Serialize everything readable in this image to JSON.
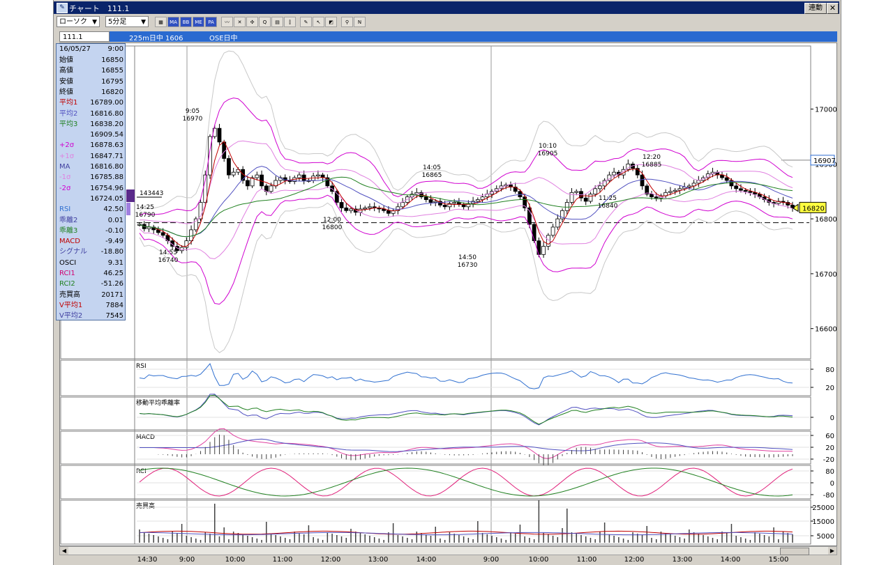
{
  "window": {
    "title": "チャート　111.1",
    "link_button": "連動",
    "close": "✕"
  },
  "toolbar": {
    "chart_type": "ローソク",
    "interval": "5分足",
    "tools": [
      {
        "name": "grid-icon",
        "label": "▦"
      },
      {
        "name": "ma-button",
        "label": "MA"
      },
      {
        "name": "bb-button",
        "label": "BB"
      },
      {
        "name": "me-button",
        "label": "ME"
      },
      {
        "name": "pa-button",
        "label": "PA"
      },
      {
        "name": "trend-icon",
        "label": "〰"
      },
      {
        "name": "cross-icon",
        "label": "✕"
      },
      {
        "name": "cursor-cross-icon",
        "label": "✣"
      },
      {
        "name": "zoom-icon",
        "label": "Q"
      },
      {
        "name": "print-icon",
        "label": "▤"
      },
      {
        "name": "fib-icon",
        "label": "⫿"
      },
      {
        "name": "pen-icon",
        "label": "✎"
      },
      {
        "name": "pointer-icon",
        "label": "↖"
      },
      {
        "name": "eraser-icon",
        "label": "◩"
      },
      {
        "name": "search-icon",
        "label": "⚲"
      },
      {
        "name": "line-draw-icon",
        "label": "N"
      }
    ]
  },
  "infobar": {
    "symbol": "111.1",
    "text1": "225m日中 1606",
    "text2": "OSE日中"
  },
  "datapanel": {
    "date": "16/05/27",
    "time": "9:00",
    "rows": [
      {
        "k": "始値",
        "v": "16850",
        "c": "#000"
      },
      {
        "k": "高値",
        "v": "16855",
        "c": "#000"
      },
      {
        "k": "安値",
        "v": "16795",
        "c": "#000"
      },
      {
        "k": "終値",
        "v": "16820",
        "c": "#000"
      },
      {
        "k": "平均1",
        "v": "16789.00",
        "c": "#c00000"
      },
      {
        "k": "平均2",
        "v": "16816.80",
        "c": "#5050c0"
      },
      {
        "k": "平均3",
        "v": "16838.20",
        "c": "#208020"
      },
      {
        "k": "",
        "v": "16909.54",
        "c": "#000"
      },
      {
        "k": "+2σ",
        "v": "16878.63",
        "c": "#d000d0"
      },
      {
        "k": "+1σ",
        "v": "16847.71",
        "c": "#e080e0"
      },
      {
        "k": "MA",
        "v": "16816.80",
        "c": "#4040a0"
      },
      {
        "k": "-1σ",
        "v": "16785.88",
        "c": "#e080e0"
      },
      {
        "k": "-2σ",
        "v": "16754.96",
        "c": "#d000d0"
      },
      {
        "k": "",
        "v": "16724.05",
        "c": "#000"
      },
      {
        "k": "RSI",
        "v": "42.50",
        "c": "#3070d0"
      },
      {
        "k": "乖離2",
        "v": "0.01",
        "c": "#4040a0"
      },
      {
        "k": "乖離3",
        "v": "-0.10",
        "c": "#208020"
      },
      {
        "k": "MACD",
        "v": "-9.49",
        "c": "#c00000"
      },
      {
        "k": "シグナル",
        "v": "-18.80",
        "c": "#4040a0"
      },
      {
        "k": "OSCI",
        "v": "9.31",
        "c": "#000"
      },
      {
        "k": "RCI1",
        "v": "46.25",
        "c": "#d00070"
      },
      {
        "k": "RCI2",
        "v": "-51.26",
        "c": "#208020"
      },
      {
        "k": "売買高",
        "v": "20171",
        "c": "#000"
      },
      {
        "k": "V平均1",
        "v": "7884",
        "c": "#c00000"
      },
      {
        "k": "V平均2",
        "v": "7545",
        "c": "#4040a0"
      }
    ]
  },
  "price_axis": {
    "ticks": [
      "17000",
      "16900",
      "16800",
      "16700",
      "16600"
    ],
    "ticks_v": [
      17000,
      16900,
      16800,
      16700,
      16600
    ],
    "box_high": "16907",
    "box_current": "16820",
    "ymin": 16545,
    "ymax": 17115
  },
  "volume_marker": "143443",
  "annotations": [
    {
      "t1": "9:05",
      "t2": "16970"
    },
    {
      "t1": "14:25",
      "t2": "16790"
    },
    {
      "t1": "14:55",
      "t2": "16740"
    },
    {
      "t1": "12:00",
      "t2": "16800"
    },
    {
      "t1": "14:05",
      "t2": "16865"
    },
    {
      "t1": "14:50",
      "t2": "16730"
    },
    {
      "t1": "10:10",
      "t2": "16905"
    },
    {
      "t1": "11:25",
      "t2": "16840"
    },
    {
      "t1": "12:20",
      "t2": "16885"
    }
  ],
  "panels": [
    {
      "label": "RSI",
      "ticks": [
        "80",
        "20"
      ]
    },
    {
      "label": "移動平均乖離率",
      "ticks": [
        "0"
      ]
    },
    {
      "label": "MACD",
      "ticks": [
        "60",
        "20",
        "-20"
      ]
    },
    {
      "label": "RCI",
      "ticks": [
        "80",
        "0",
        "-80"
      ]
    },
    {
      "label": "売買高",
      "ticks": [
        "25000",
        "15000",
        "5000"
      ]
    }
  ],
  "time_labels": [
    "14:30",
    "9:00",
    "10:00",
    "11:00",
    "12:00",
    "13:00",
    "14:00",
    "9:00",
    "10:00",
    "11:00",
    "12:00",
    "13:00",
    "14:00",
    "15:00"
  ],
  "colors": {
    "title_bg": "#0a246a",
    "info_bg": "#2a6ad0",
    "candle_up": "#ffffff",
    "candle_down": "#000000",
    "ma_red": "#c00000",
    "ma_blue": "#5050c0",
    "ma_green": "#208020",
    "bb2": "#d000d0",
    "bb1": "#e080e0",
    "bb3": "#c8c8c8",
    "rsi": "#3070d0"
  },
  "chart_data": {
    "type": "candlestick",
    "title": "111.1",
    "interval": "5分足",
    "price_range": [
      16545,
      17115
    ],
    "labels": [
      {
        "time": "9:05",
        "price": 16970
      },
      {
        "time": "14:25",
        "price": 16790
      },
      {
        "time": "14:55",
        "price": 16740
      },
      {
        "time": "12:00",
        "price": 16800
      },
      {
        "time": "14:05",
        "price": 16865
      },
      {
        "time": "14:50",
        "price": 16730
      },
      {
        "time": "10:10",
        "price": 16905
      },
      {
        "time": "11:25",
        "price": 16840
      },
      {
        "time": "12:20",
        "price": 16885
      }
    ],
    "current": 16820,
    "high_line": 16907,
    "selected_bar": {
      "date": "16/05/27",
      "time": "9:00",
      "open": 16850,
      "high": 16855,
      "low": 16795,
      "close": 16820
    }
  }
}
